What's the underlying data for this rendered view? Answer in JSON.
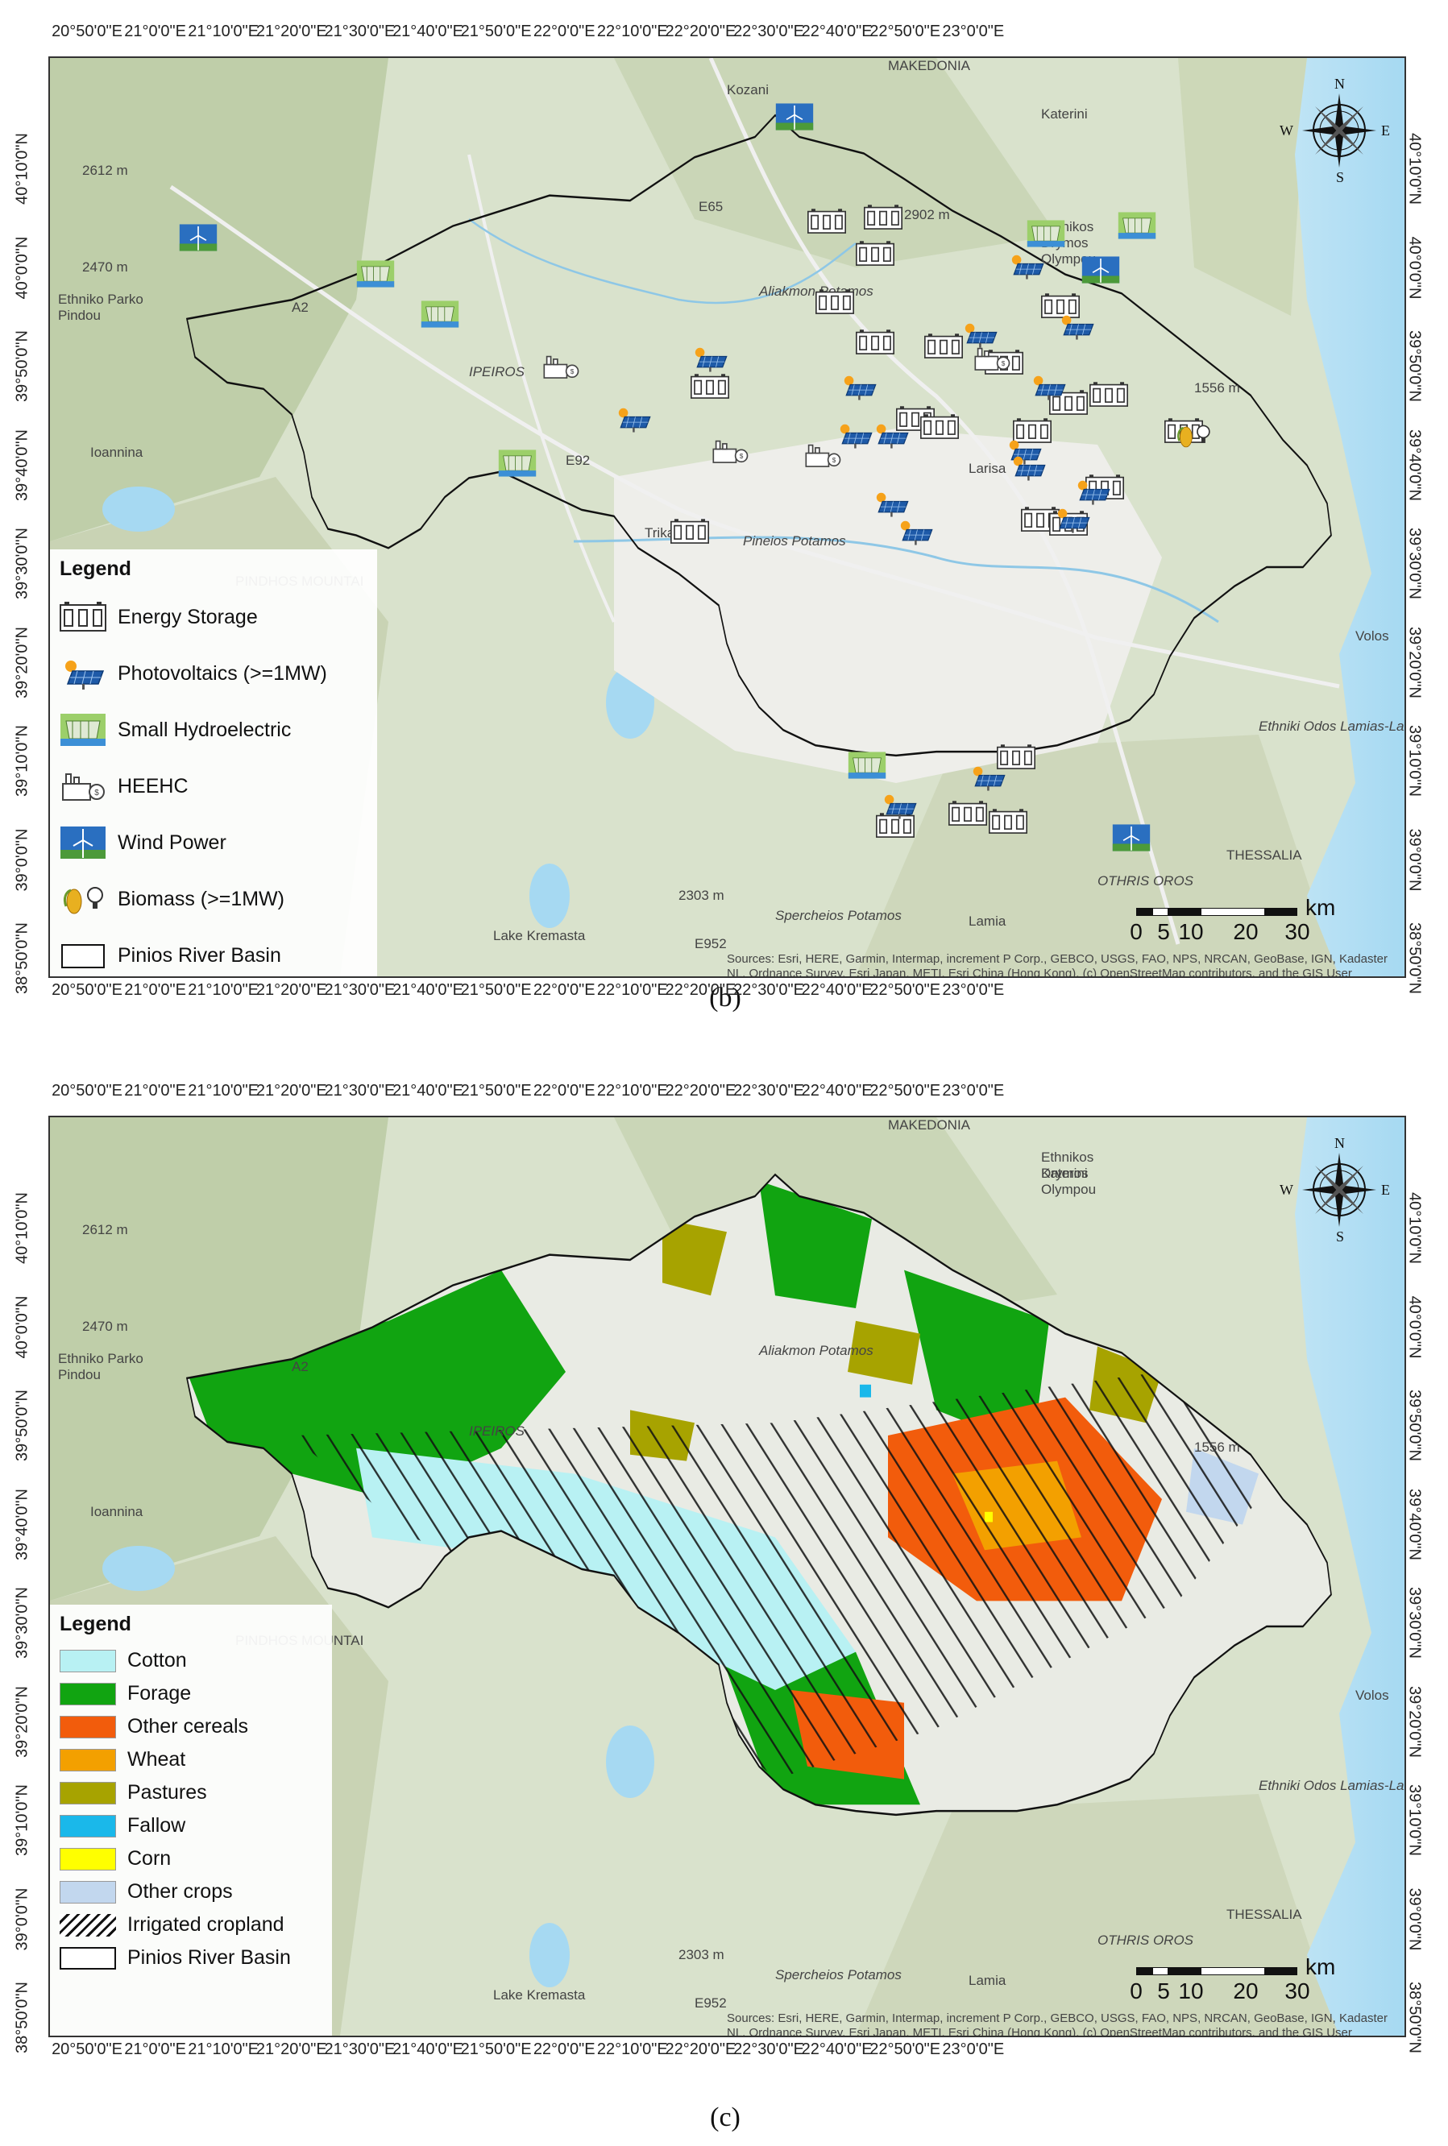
{
  "lon_ticks": [
    "20°50'0\"E",
    "21°0'0\"E",
    "21°10'0\"E",
    "21°20'0\"E",
    "21°30'0\"E",
    "21°40'0\"E",
    "21°50'0\"E",
    "22°0'0\"E",
    "22°10'0\"E",
    "22°20'0\"E",
    "22°30'0\"E",
    "22°40'0\"E",
    "22°50'0\"E",
    "23°0'0\"E"
  ],
  "lat_ticks": [
    "40°10'0\"N",
    "40°0'0\"N",
    "39°50'0\"N",
    "39°40'0\"N",
    "39°30'0\"N",
    "39°20'0\"N",
    "39°10'0\"N",
    "39°0'0\"N",
    "38°50'0\"N"
  ],
  "place_labels": [
    "Kozani",
    "Katerini",
    "Ioannina",
    "Trika",
    "Larisa",
    "Volos",
    "Lamia",
    "THESSALIA",
    "OTHRIS OROS",
    "PINDHOS MOUNTAI",
    "MAKEDONIA",
    "IPEIROS",
    "Lake Kremasta",
    "2612 m",
    "2470 m",
    "2303 m",
    "2902 m",
    "1556 m",
    "Ethniko Parko Pindou",
    "Ethnikos Drymos Olympou",
    "Spercheios Potamos",
    "E65",
    "E92",
    "E952",
    "A2",
    "Aliakmon Potamos",
    "Pineios Potamos",
    "Ethniki Odos Lamias-Larisas"
  ],
  "compass": {
    "n": "N",
    "s": "S",
    "e": "E",
    "w": "W"
  },
  "scale_bar": {
    "unit": "km",
    "labels": [
      "0",
      "5",
      "10",
      "20",
      "30"
    ]
  },
  "sources_text": "Sources: Esri, HERE, Garmin, Intermap, increment P Corp., GEBCO, USGS, FAO, NPS, NRCAN, GeoBase, IGN, Kadaster NL, Ordnance Survey, Esri Japan, METI, Esri China (Hong Kong), (c) OpenStreetMap contributors, and the GIS User Community",
  "panel_b": {
    "label": "(b)",
    "legend": {
      "title": "Legend",
      "items": [
        {
          "label": "Energy Storage",
          "icon": "battery-storage-icon"
        },
        {
          "label": "Photovoltaics (>=1MW)",
          "icon": "solar-panel-icon"
        },
        {
          "label": "Small Hydroelectric",
          "icon": "hydroelectric-icon"
        },
        {
          "label": "HEEHC",
          "icon": "power-plant-icon"
        },
        {
          "label": "Wind Power",
          "icon": "wind-turbine-icon"
        },
        {
          "label": "Biomass (>=1MW)",
          "icon": "biomass-icon"
        },
        {
          "label": "Pinios River Basin",
          "icon": "basin-outline-icon"
        }
      ]
    }
  },
  "panel_c": {
    "label": "(c)",
    "legend": {
      "title": "Legend",
      "items": [
        {
          "label": "Cotton",
          "color": "#b8f1f3"
        },
        {
          "label": "Forage",
          "color": "#11a411"
        },
        {
          "label": "Other cereals",
          "color": "#f25c0c"
        },
        {
          "label": "Wheat",
          "color": "#f3a000"
        },
        {
          "label": "Pastures",
          "color": "#a7a300"
        },
        {
          "label": "Fallow",
          "color": "#1ab8ea"
        },
        {
          "label": "Corn",
          "color": "#ffff00"
        },
        {
          "label": "Other crops",
          "color": "#c2d7ee"
        },
        {
          "label": "Irrigated cropland",
          "pattern": "hatch"
        },
        {
          "label": "Pinios River Basin",
          "pattern": "outline"
        }
      ]
    }
  }
}
